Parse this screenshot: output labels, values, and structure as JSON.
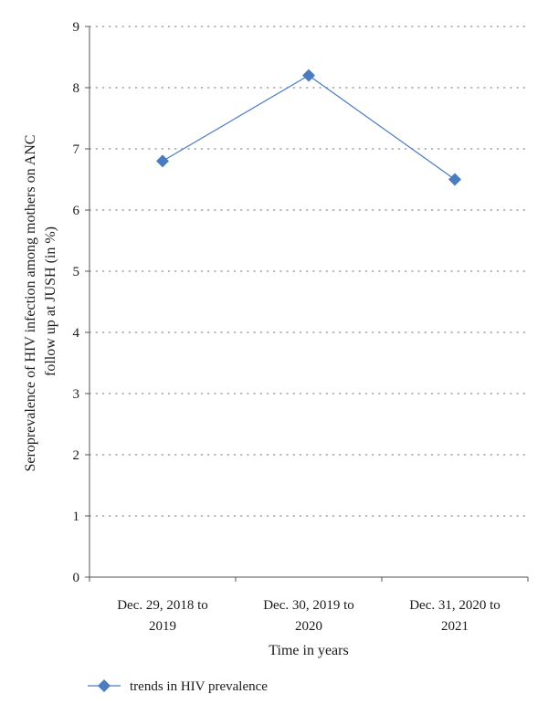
{
  "chart_data": {
    "type": "line",
    "title": "",
    "xlabel": "Time in years",
    "ylabel_lines": [
      "Seroprevalence of HIV infection among mothers on ANC",
      "follow up at JUSH (in %)"
    ],
    "categories": [
      [
        "Dec. 29, 2018 to",
        "2019"
      ],
      [
        "Dec. 30, 2019 to",
        "2020"
      ],
      [
        "Dec. 31, 2020 to",
        "2021"
      ]
    ],
    "ylim": [
      0,
      9
    ],
    "yticks": [
      "0",
      "1",
      "2",
      "3",
      "4",
      "5",
      "6",
      "7",
      "8",
      "9"
    ],
    "grid": true,
    "legend_position": "bottom-left",
    "series": [
      {
        "name": "trends in HIV prevalence",
        "values": [
          6.8,
          8.2,
          6.5
        ],
        "color": "#4a7cc0",
        "marker": "diamond"
      }
    ]
  }
}
